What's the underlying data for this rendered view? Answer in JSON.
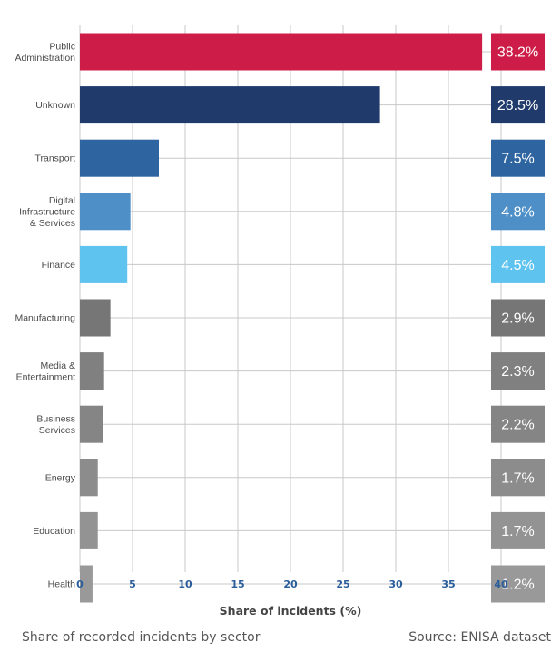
{
  "chart_data": {
    "type": "bar",
    "orientation": "horizontal",
    "categories": [
      "Public Administration",
      "Unknown",
      "Transport",
      "Digital Infrastructure & Services",
      "Finance",
      "Manufacturing",
      "Media & Entertainment",
      "Business Services",
      "Energy",
      "Education",
      "Health"
    ],
    "category_lines": [
      [
        "Public",
        "Administration"
      ],
      [
        "Unknown"
      ],
      [
        "Transport"
      ],
      [
        "Digital",
        "Infrastructure",
        "& Services"
      ],
      [
        "Finance"
      ],
      [
        "Manufacturing"
      ],
      [
        "Media &",
        "Entertainment"
      ],
      [
        "Business",
        "Services"
      ],
      [
        "Energy"
      ],
      [
        "Education"
      ],
      [
        "Health"
      ]
    ],
    "values": [
      38.2,
      28.5,
      7.5,
      4.8,
      4.5,
      2.9,
      2.3,
      2.2,
      1.7,
      1.7,
      1.2
    ],
    "value_labels": [
      "38.2%",
      "28.5%",
      "7.5%",
      "4.8%",
      "4.5%",
      "2.9%",
      "2.3%",
      "2.2%",
      "1.7%",
      "1.7%",
      "1.2%"
    ],
    "colors": [
      "#cc1c47",
      "#1f3a6b",
      "#2e64a0",
      "#4e8fc7",
      "#5ec3ee",
      "#767676",
      "#808080",
      "#858585",
      "#8c8c8c",
      "#939393",
      "#999999"
    ],
    "xlim": [
      0,
      40
    ],
    "xticks": [
      0,
      5,
      10,
      15,
      20,
      25,
      30,
      35,
      40
    ],
    "xlabel": "Share of incidents (%)",
    "grid": true
  },
  "footer": {
    "caption": "Share of recorded incidents by sector",
    "source": "Source: ENISA dataset"
  }
}
